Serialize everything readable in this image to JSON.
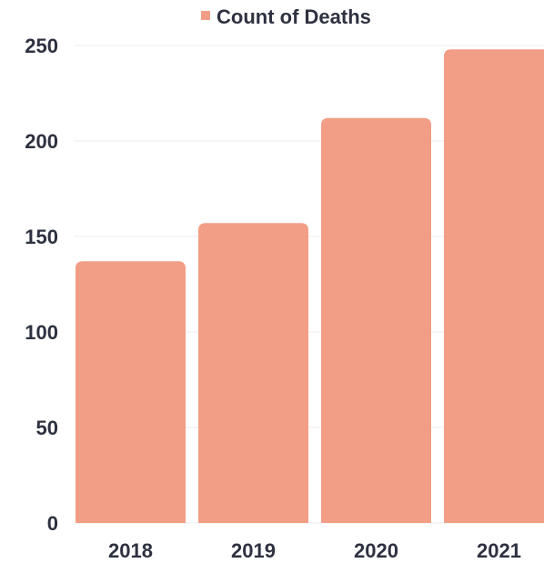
{
  "chart_data": {
    "type": "bar",
    "categories": [
      "2018",
      "2019",
      "2020",
      "2021"
    ],
    "series": [
      {
        "name": "Count of Deaths",
        "values": [
          137,
          157,
          212,
          248
        ],
        "color": "#f29e86"
      }
    ],
    "title": "",
    "xlabel": "",
    "ylabel": "",
    "ylim": [
      0,
      250
    ],
    "yticks": [
      0,
      50,
      100,
      150,
      200,
      250
    ],
    "grid": true,
    "legend": "top-center"
  }
}
